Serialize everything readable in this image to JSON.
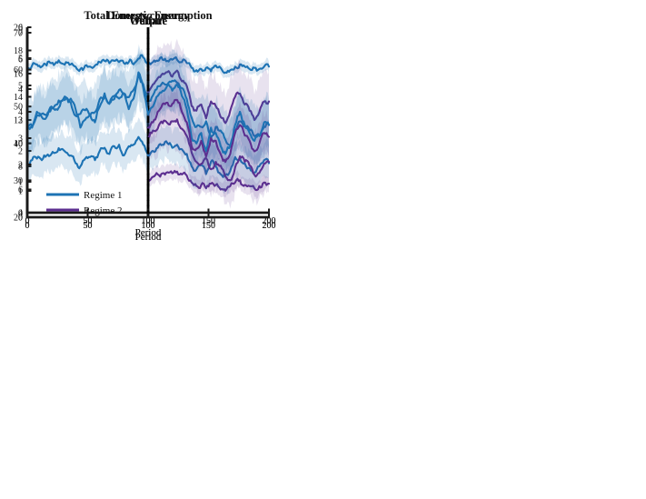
{
  "figure": {
    "background": "#ffffff",
    "dashed_line_color": "#000000",
    "axis_color": "#1a1a1a",
    "text_color": "#111111"
  },
  "colors": {
    "regime1_line": "#1d73b4",
    "regime2_line": "#5c2f90",
    "regime1_band": "rgba(29,115,180,0.17)",
    "regime2_band": "rgba(92,47,144,0.14)"
  },
  "legend": {
    "entries": [
      {
        "label": "Regime 1",
        "color_key": "regime1_line"
      },
      {
        "label": "Regime 2",
        "color_key": "regime2_line"
      }
    ]
  },
  "chart_data": [
    {
      "id": "total-energy-consumption",
      "type": "line",
      "title": "Total Energy consumption",
      "xlabel": "Period",
      "xlim": [
        0,
        200
      ],
      "xticks": [
        0,
        50,
        100,
        150,
        200
      ],
      "ylim": [
        4,
        20
      ],
      "yticks": [
        4,
        6,
        8,
        10,
        12,
        14,
        16,
        18,
        20
      ],
      "grid": false,
      "regime_change_x": 100,
      "has_legend": false,
      "series": [
        {
          "name": "Regime 1",
          "color_key": "regime1_line",
          "band_color_key": "regime1_band",
          "band_halfwidth": 0.45,
          "x_start": 0,
          "x_step": 4,
          "y": [
            16.5,
            16.7,
            16.8,
            16.6,
            16.7,
            16.9,
            17.0,
            16.9,
            17.0,
            16.8,
            16.6,
            16.4,
            16.7,
            16.6,
            16.7,
            17.0,
            17.1,
            16.9,
            17.1,
            17.0,
            16.9,
            17.0,
            16.8,
            17.3,
            17.4,
            16.8,
            17.0,
            17.1,
            17.2,
            17.1,
            17.2,
            17.2,
            17.0,
            16.9,
            16.5,
            16.3,
            16.4,
            16.5,
            16.2,
            16.7,
            16.5,
            16.1,
            16.3,
            16.6,
            16.8,
            16.6,
            16.4,
            16.5,
            16.4,
            16.6,
            16.6
          ]
        },
        {
          "name": "Regime 2",
          "color_key": "regime2_line",
          "band_color_key": "regime2_band",
          "band_halfwidth": 0.65,
          "x_start": 100,
          "x_step": 4,
          "y": [
            6.8,
            7.1,
            7.3,
            7.4,
            7.5,
            7.4,
            7.55,
            7.3,
            7.2,
            6.6,
            6.3,
            6.4,
            6.1,
            6.5,
            6.4,
            6.0,
            5.9,
            6.3,
            6.6,
            6.8,
            6.4,
            6.3,
            6.1,
            6.3,
            6.6,
            6.5
          ]
        }
      ]
    },
    {
      "id": "domestic-energy",
      "type": "line",
      "title": "Domestic Energy",
      "xlabel": "Period",
      "xlim": [
        0,
        200
      ],
      "xticks": [
        0,
        50,
        100,
        150,
        200
      ],
      "ylim": [
        0,
        6
      ],
      "yticks": [
        0,
        1,
        2,
        3,
        4,
        5,
        6
      ],
      "grid": false,
      "regime_change_x": 100,
      "has_legend": false,
      "series": [
        {
          "name": "Regime 1",
          "color_key": "regime1_line",
          "band_color_key": "regime1_band",
          "band_halfwidth": 0.55,
          "x_start": 0,
          "x_step": 4,
          "y": [
            1.55,
            1.7,
            1.75,
            1.7,
            1.85,
            1.9,
            1.95,
            2.05,
            1.95,
            1.85,
            1.6,
            1.5,
            1.75,
            1.8,
            1.7,
            2.0,
            2.1,
            1.9,
            2.15,
            2.2,
            1.85,
            2.15,
            2.2,
            2.45,
            2.2,
            1.85,
            2.0,
            2.1,
            2.2,
            2.25,
            2.1,
            2.2,
            2.05,
            1.9,
            1.5,
            1.4,
            1.55,
            1.25,
            1.65,
            1.5,
            1.25,
            1.2,
            1.35,
            1.8,
            1.75,
            1.6,
            1.45,
            1.3,
            1.5,
            1.7,
            1.6
          ]
        },
        {
          "name": "Regime 2",
          "color_key": "regime2_line",
          "band_color_key": "regime2_band",
          "band_halfwidth": 0.95,
          "x_start": 100,
          "x_step": 4,
          "y": [
            3.9,
            4.15,
            4.35,
            4.5,
            4.55,
            4.4,
            4.6,
            4.25,
            4.1,
            3.45,
            3.3,
            3.5,
            3.05,
            3.6,
            3.45,
            3.1,
            2.9,
            3.3,
            3.75,
            3.85,
            3.5,
            3.3,
            3.0,
            3.25,
            3.6,
            3.6
          ]
        }
      ]
    },
    {
      "id": "welfare",
      "type": "line",
      "title": "Welfare",
      "xlabel": "Period",
      "xlim": [
        0,
        200
      ],
      "xticks": [
        0,
        50,
        100,
        150,
        200
      ],
      "ylim": [
        20,
        70
      ],
      "yticks": [
        20,
        30,
        40,
        50,
        60,
        70
      ],
      "grid": false,
      "regime_change_x": 100,
      "has_legend": false,
      "series": [
        {
          "name": "Regime 1",
          "color_key": "regime1_line",
          "band_color_key": "regime1_band",
          "band_halfwidth": 7.5,
          "x_start": 0,
          "x_step": 4,
          "y": [
            45,
            44.5,
            47.5,
            48,
            47.5,
            49.5,
            50.5,
            51.5,
            52.5,
            51,
            47.5,
            48,
            49,
            47.5,
            48.5,
            52,
            52.5,
            51,
            52,
            54.5,
            53.5,
            52.5,
            54.5,
            58.5,
            56,
            51.5,
            53,
            55.5,
            56.5,
            56,
            57,
            56.5,
            55,
            52,
            47,
            44.5,
            44.5,
            46,
            41.5,
            44.5,
            43.5,
            41,
            39.5,
            43.5,
            46,
            44.5,
            43.5,
            42,
            42,
            44.5,
            45
          ]
        },
        {
          "name": "Regime 2",
          "color_key": "regime2_line",
          "band_color_key": "regime2_band",
          "band_halfwidth": 7,
          "x_start": 100,
          "x_step": 4,
          "y": [
            41.5,
            43.5,
            44,
            45.5,
            45.5,
            46,
            46.5,
            44,
            42,
            37.5,
            35,
            34.5,
            36,
            33,
            35,
            34,
            31,
            30,
            33.5,
            36.5,
            35,
            34,
            31.5,
            32,
            34.5,
            35
          ]
        }
      ]
    },
    {
      "id": "output",
      "type": "line",
      "title": "Output",
      "xlabel": "Period",
      "xlim": [
        0,
        200
      ],
      "xticks": [
        0,
        50,
        100,
        150,
        200
      ],
      "ylim": [
        0,
        7
      ],
      "yticks": [
        0,
        1,
        2,
        3,
        4,
        5,
        6,
        7
      ],
      "grid": false,
      "regime_change_x": 100,
      "has_legend": true,
      "series": [
        {
          "name": "Regime 1",
          "color_key": "regime1_line",
          "band_color_key": "regime1_band",
          "band_halfwidth": 0.9,
          "x_start": 0,
          "x_step": 4,
          "y": [
            3.5,
            3.4,
            4.0,
            3.8,
            3.8,
            4.2,
            4.1,
            4.4,
            4.5,
            4.5,
            4.1,
            3.4,
            3.7,
            3.9,
            3.6,
            4.2,
            4.7,
            4.3,
            4.6,
            4.5,
            4.7,
            4.1,
            4.5,
            5.5,
            4.9,
            3.9,
            4.2,
            4.6,
            4.8,
            5.0,
            4.8,
            5.05,
            4.6,
            4.1,
            3.0,
            2.8,
            3.2,
            2.5,
            3.4,
            3.2,
            2.7,
            2.4,
            2.7,
            3.5,
            4.0,
            3.5,
            3.2,
            2.9,
            3.1,
            3.6,
            3.5
          ]
        },
        {
          "name": "Regime 2",
          "color_key": "regime2_line",
          "band_color_key": "regime2_band",
          "band_halfwidth": 0.75,
          "x_start": 100,
          "x_step": 4,
          "y": [
            3.4,
            3.6,
            4.0,
            4.3,
            4.35,
            4.3,
            4.45,
            4.0,
            3.6,
            2.7,
            2.6,
            2.9,
            2.3,
            3.0,
            2.9,
            2.4,
            2.1,
            2.4,
            3.2,
            3.5,
            3.1,
            2.9,
            2.5,
            2.8,
            3.2,
            3.05
          ]
        }
      ]
    }
  ]
}
